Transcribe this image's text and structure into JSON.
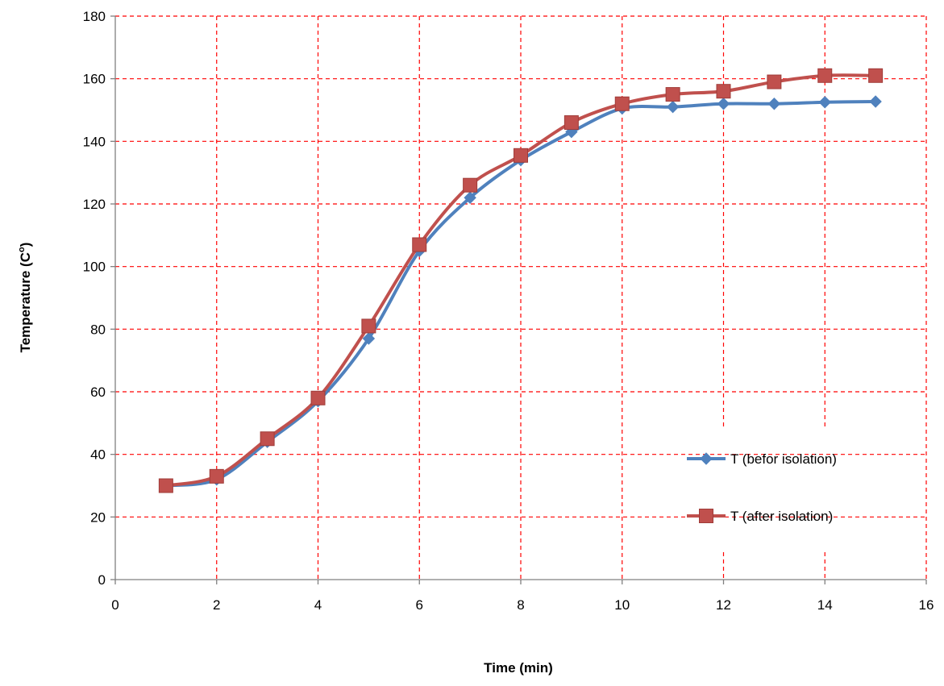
{
  "chart_data": {
    "type": "line",
    "title": "",
    "xlabel": "Time (min)",
    "ylabel": "Temperature (C",
    "ylabel_superscript": "o",
    "ylabel_suffix": ")",
    "xlim": [
      0,
      16
    ],
    "ylim": [
      0,
      180
    ],
    "xticks": [
      0,
      2,
      4,
      6,
      8,
      10,
      12,
      14,
      16
    ],
    "yticks": [
      0,
      20,
      40,
      60,
      80,
      100,
      120,
      140,
      160,
      180
    ],
    "grid": true,
    "grid_color": "#ff0000",
    "legend_position": "bottom-right",
    "x": [
      1,
      2,
      3,
      4,
      5,
      6,
      7,
      8,
      9,
      10,
      11,
      12,
      13,
      14,
      15
    ],
    "series": [
      {
        "name": "T (befor isolation)",
        "color": "#4f81bd",
        "marker": "diamond",
        "values": [
          30,
          32,
          44,
          57,
          77,
          105,
          122,
          134,
          143,
          150.5,
          151,
          152,
          152,
          152.5,
          152.7
        ]
      },
      {
        "name": "T (after isolation)",
        "color": "#c0504d",
        "marker": "square",
        "values": [
          30,
          33,
          45,
          58,
          81,
          107,
          126,
          135.5,
          146,
          152,
          155,
          156,
          159,
          161,
          161
        ]
      }
    ]
  }
}
